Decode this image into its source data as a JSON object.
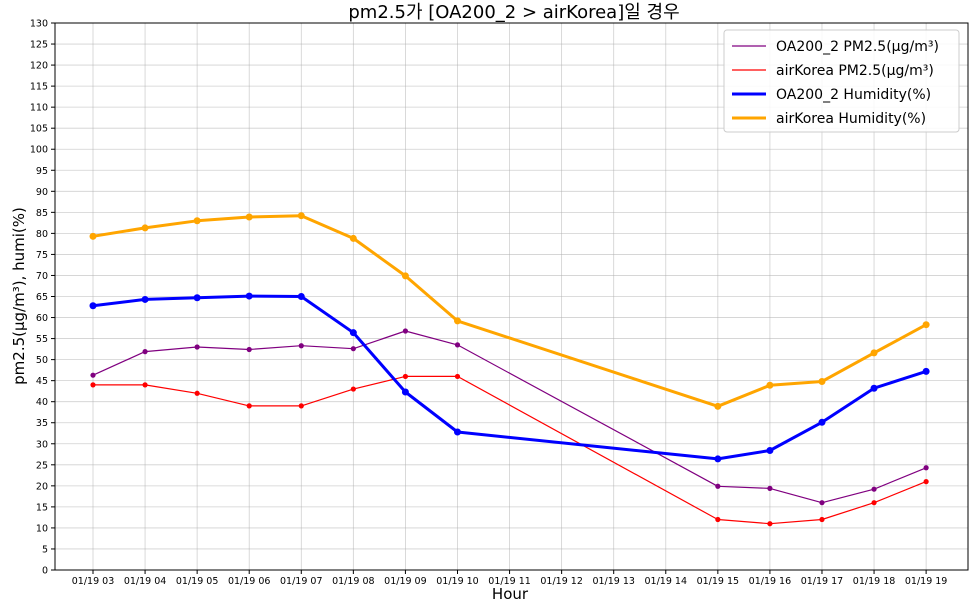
{
  "chart_data": {
    "type": "line",
    "title": "pm2.5가 [OA200_2 > airKorea]일 경우",
    "xlabel": "Hour",
    "ylabel": "pm2.5(μg/m³), humi(%)",
    "ylim": [
      0,
      130
    ],
    "ytick_step": 5,
    "grid": true,
    "legend_position": "top-right",
    "x": [
      "01/19 03",
      "01/19 04",
      "01/19 05",
      "01/19 06",
      "01/19 07",
      "01/19 08",
      "01/19 09",
      "01/19 10",
      "01/19 11",
      "01/19 12",
      "01/19 13",
      "01/19 14",
      "01/19 15",
      "01/19 16",
      "01/19 17",
      "01/19 18",
      "01/19 19"
    ],
    "series": [
      {
        "name": "OA200_2 PM2.5(μg/m³)",
        "color": "#800080",
        "style": "thin",
        "values": [
          46.3,
          51.9,
          53.0,
          52.4,
          53.3,
          52.6,
          56.8,
          53.5,
          null,
          null,
          null,
          null,
          19.9,
          19.4,
          16.0,
          19.2,
          24.3
        ]
      },
      {
        "name": "airKorea PM2.5(μg/m³)",
        "color": "#ff0000",
        "style": "thin",
        "values": [
          44,
          44,
          42,
          39,
          39,
          43,
          46,
          46,
          null,
          null,
          null,
          null,
          12,
          11,
          12,
          16,
          21
        ]
      },
      {
        "name": "OA200_2 Humidity(%)",
        "color": "#0000ff",
        "style": "thick",
        "values": [
          62.8,
          64.3,
          64.7,
          65.1,
          65.0,
          56.4,
          42.3,
          32.8,
          null,
          null,
          null,
          null,
          26.4,
          28.4,
          35.1,
          43.2,
          47.2
        ]
      },
      {
        "name": "airKorea Humidity(%)",
        "color": "#ffa500",
        "style": "thick",
        "values": [
          79.3,
          81.3,
          83.0,
          83.9,
          84.2,
          78.8,
          69.9,
          59.2,
          null,
          null,
          null,
          null,
          38.9,
          43.9,
          44.8,
          51.6,
          58.3
        ]
      }
    ]
  }
}
